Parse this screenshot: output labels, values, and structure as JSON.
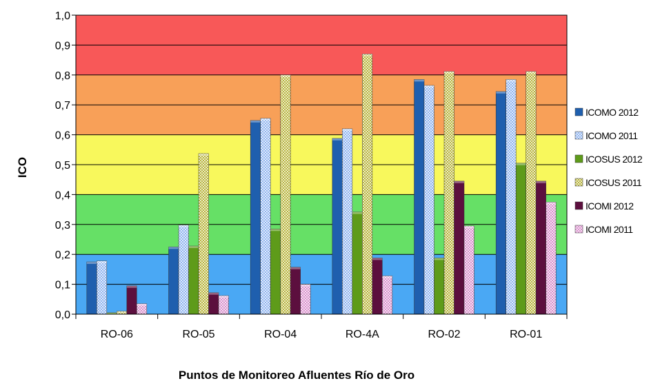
{
  "chart_data": {
    "type": "bar",
    "title": "",
    "xlabel": "Puntos de Monitoreo Afluentes Río de Oro",
    "ylabel": "ICO",
    "ylim": [
      0,
      1.0
    ],
    "yticks": [
      "0,0",
      "0,1",
      "0,2",
      "0,3",
      "0,4",
      "0,5",
      "0,6",
      "0,7",
      "0,8",
      "0,9",
      "1,0"
    ],
    "categories": [
      "RO-06",
      "RO-05",
      "RO-04",
      "RO-4A",
      "RO-02",
      "RO-01"
    ],
    "series": [
      {
        "name": "ICOMO 2012",
        "values": [
          0.175,
          0.225,
          0.648,
          0.588,
          0.785,
          0.745
        ],
        "color": "#1f5fae",
        "pattern": "solid"
      },
      {
        "name": "ICOMO 2011",
        "values": [
          0.178,
          0.298,
          0.655,
          0.62,
          0.765,
          0.785
        ],
        "color": "#8fb4ef",
        "pattern": "checker"
      },
      {
        "name": "ICOSUS 2012",
        "values": [
          0.005,
          0.228,
          0.285,
          0.342,
          0.188,
          0.505
        ],
        "color": "#5e9b1a",
        "pattern": "solid"
      },
      {
        "name": "ICOSUS 2011",
        "values": [
          0.01,
          0.537,
          0.8,
          0.87,
          0.812,
          0.812
        ],
        "color": "#b8b43a",
        "pattern": "checker"
      },
      {
        "name": "ICOMI 2012",
        "values": [
          0.095,
          0.072,
          0.157,
          0.188,
          0.445,
          0.445
        ],
        "color": "#5c0f3e",
        "pattern": "solid"
      },
      {
        "name": "ICOMI 2011",
        "values": [
          0.035,
          0.062,
          0.1,
          0.128,
          0.295,
          0.375
        ],
        "color": "#d98fcc",
        "pattern": "checker"
      }
    ],
    "bands": [
      {
        "from": 0.0,
        "to": 0.2,
        "color": "#4aa8f4"
      },
      {
        "from": 0.2,
        "to": 0.4,
        "color": "#66e066"
      },
      {
        "from": 0.4,
        "to": 0.6,
        "color": "#f8f85c"
      },
      {
        "from": 0.6,
        "to": 0.8,
        "color": "#f8a058"
      },
      {
        "from": 0.8,
        "to": 1.0,
        "color": "#f85858"
      }
    ],
    "grid": true,
    "legend_position": "right"
  }
}
